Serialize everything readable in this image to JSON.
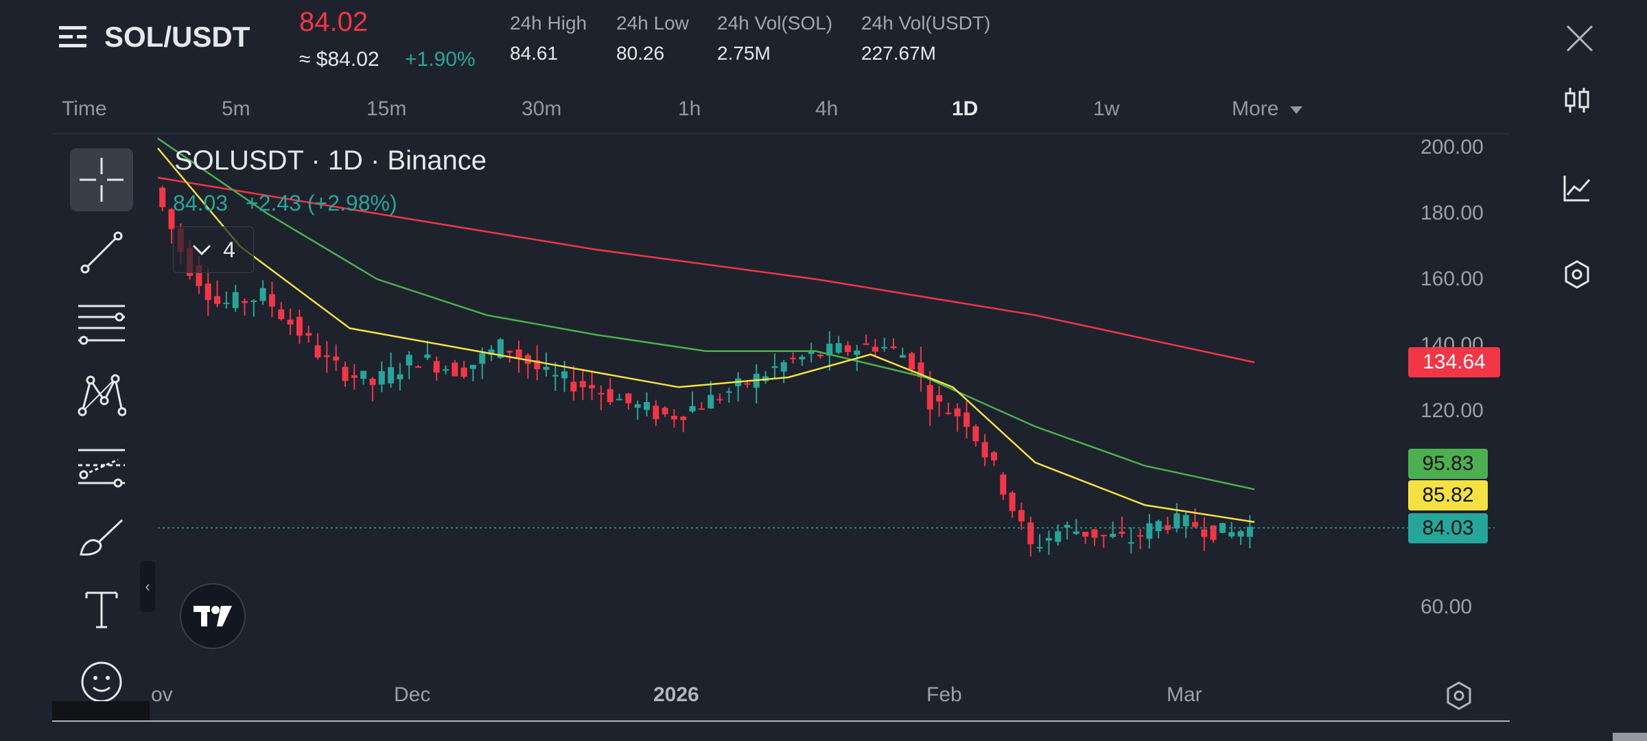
{
  "header": {
    "pair": "SOL/USDT",
    "price": "84.02",
    "fiat": "≈ $84.02",
    "change": "+1.90%",
    "stats": [
      {
        "label": "24h High",
        "value": "84.61"
      },
      {
        "label": "24h Low",
        "value": "80.26"
      },
      {
        "label": "24h Vol(SOL)",
        "value": "2.75M"
      },
      {
        "label": "24h Vol(USDT)",
        "value": "227.67M"
      }
    ]
  },
  "timeframes": [
    "Time",
    "5m",
    "15m",
    "30m",
    "1h",
    "4h",
    "1D",
    "1w",
    "More"
  ],
  "active_timeframe": "1D",
  "legend": {
    "symbol": "SOLUSDT · 1D · Binance",
    "last": "84.03",
    "change": "+2.43 (+2.98%)",
    "indicator_count": "4"
  },
  "colors": {
    "background": "#1e222d",
    "up": "#26a69a",
    "down": "#f23645",
    "ma_yellow": "#f5e142",
    "ma_green": "#4caf50",
    "ma_red": "#f23645"
  },
  "icons": {
    "menu": "menu-icon",
    "close": "close-icon",
    "candles": "candlestick-icon",
    "indicators": "indicators-icon",
    "settings": "hexagon-settings-icon"
  },
  "chart_data": {
    "type": "line",
    "ylim": [
      55,
      205
    ],
    "yticks": [
      "200.00",
      "180.00",
      "160.00",
      "140.00",
      "120.00",
      "60.00"
    ],
    "xticks": [
      "ov",
      "Dec",
      "2026",
      "Feb",
      "Mar"
    ],
    "price_badges": [
      {
        "value": "134.64",
        "color": "#f23645"
      },
      {
        "value": "95.83",
        "color": "#4caf50"
      },
      {
        "value": "85.82",
        "color": "#f5e142"
      },
      {
        "value": "84.03",
        "color": "#26a69a"
      }
    ],
    "series": [
      {
        "color": "#f23645",
        "x": [
          0,
          40,
          80,
          120,
          160,
          200
        ],
        "values": [
          191,
          180,
          169,
          160,
          149,
          134.6
        ]
      },
      {
        "color": "#4caf50",
        "x": [
          0,
          20,
          40,
          60,
          80,
          100,
          120,
          140,
          160,
          180,
          200
        ],
        "values": [
          203,
          180,
          160,
          149,
          143,
          138,
          138,
          130,
          115,
          103,
          95.8
        ]
      },
      {
        "color": "#f5e142",
        "x": [
          0,
          15,
          35,
          55,
          75,
          95,
          115,
          130,
          145,
          160,
          180,
          200
        ],
        "values": [
          200,
          170,
          145,
          139,
          133,
          127,
          130,
          137,
          127,
          104,
          91,
          85.8
        ]
      }
    ],
    "last_price": 84.03
  }
}
